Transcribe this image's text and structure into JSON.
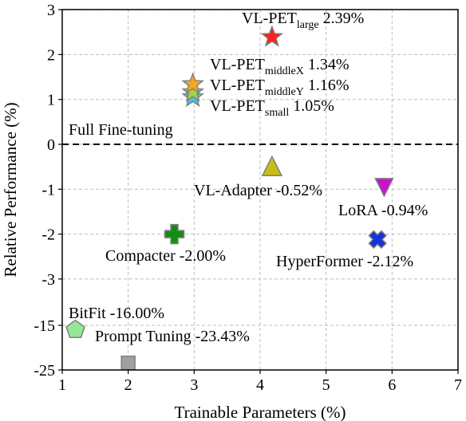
{
  "chart_data": {
    "type": "scatter",
    "xlabel": "Trainable Parameters (%)",
    "ylabel": "Relative Performance (%)",
    "xlim": [
      1,
      7
    ],
    "x_ticks": [
      "1",
      "2",
      "3",
      "4",
      "5",
      "6",
      "7"
    ],
    "y_ticks": [
      "3",
      "2",
      "1",
      "0",
      "-1",
      "-2",
      "-3",
      "-15",
      "-25"
    ],
    "y_scale": "broken axis: linear from -3 to 3, compressed segment for -15 and -25",
    "grid": true,
    "reference_line": {
      "label": "Full Fine-tuning",
      "y": 0,
      "style": "dashed"
    },
    "points": [
      {
        "name": "VL-PET",
        "subscript": "large",
        "value_label": "2.39%",
        "x": 4.18,
        "y": 2.39,
        "marker": "star",
        "color": "#ff2020"
      },
      {
        "name": "VL-PET",
        "subscript": "middleX",
        "value_label": "1.34%",
        "x": 2.98,
        "y": 1.34,
        "marker": "star",
        "color": "#f5a623"
      },
      {
        "name": "VL-PET",
        "subscript": "middleY",
        "value_label": "1.16%",
        "x": 2.98,
        "y": 1.16,
        "marker": "star",
        "color": "#a8d23a"
      },
      {
        "name": "VL-PET",
        "subscript": "small",
        "value_label": "1.05%",
        "x": 2.98,
        "y": 1.05,
        "marker": "star",
        "color": "#3cc8e6"
      },
      {
        "name": "VL-Adapter",
        "value_label": "-0.52%",
        "x": 4.18,
        "y": -0.52,
        "marker": "triangle-up",
        "color": "#c8be14"
      },
      {
        "name": "LoRA",
        "value_label": "-0.94%",
        "x": 5.88,
        "y": -0.94,
        "marker": "triangle-down",
        "color": "#c814c8"
      },
      {
        "name": "Compacter",
        "value_label": "-2.00%",
        "x": 2.7,
        "y": -2.0,
        "marker": "plus",
        "color": "#148c14"
      },
      {
        "name": "HyperFormer",
        "value_label": "-2.12%",
        "x": 5.78,
        "y": -2.12,
        "marker": "x",
        "color": "#1432dc"
      },
      {
        "name": "BitFit",
        "value_label": "-16.00%",
        "x": 1.2,
        "y": -16.0,
        "marker": "pentagon",
        "color": "#96e696"
      },
      {
        "name": "Prompt Tuning",
        "value_label": "-23.43%",
        "x": 2.0,
        "y": -23.43,
        "marker": "square",
        "color": "#a0a0a0"
      }
    ]
  }
}
